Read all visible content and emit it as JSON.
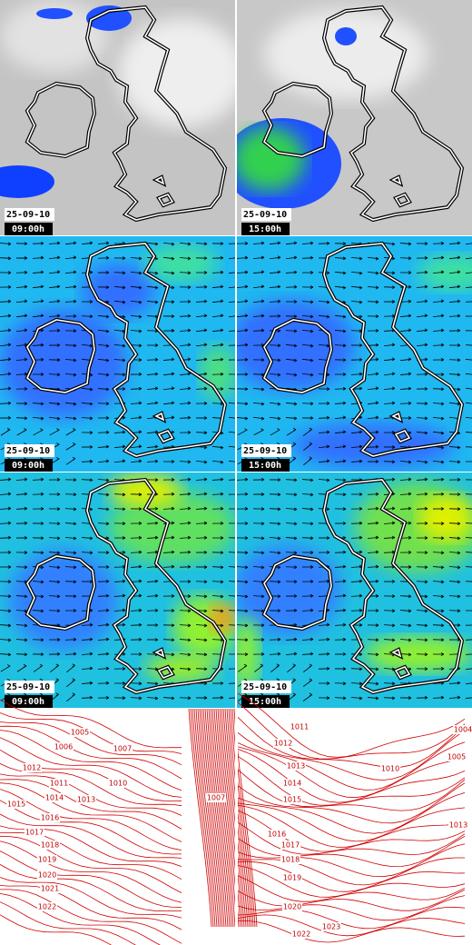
{
  "panels": [
    {
      "date": "25-09-10",
      "time": "09:00h"
    },
    {
      "date": "25-09-10",
      "time": "15:00h"
    },
    {
      "date": "25-09-10",
      "time": "09:00h"
    },
    {
      "date": "25-09-10",
      "time": "15:00h"
    },
    {
      "date": "25-09-10",
      "time": "09:00h"
    },
    {
      "date": "25-09-10",
      "time": "15:00h"
    }
  ],
  "isobars": {
    "left": [
      1005,
      1006,
      1007,
      1012,
      1011,
      1010,
      1014,
      1013,
      1015,
      1016,
      1017,
      1018,
      1019,
      1020,
      1021,
      1022,
      1007
    ],
    "right": [
      1011,
      1012,
      1013,
      1010,
      1014,
      1015,
      1004,
      1005,
      1013,
      1016,
      1017,
      1018,
      1019,
      1020,
      1022,
      1023
    ]
  }
}
